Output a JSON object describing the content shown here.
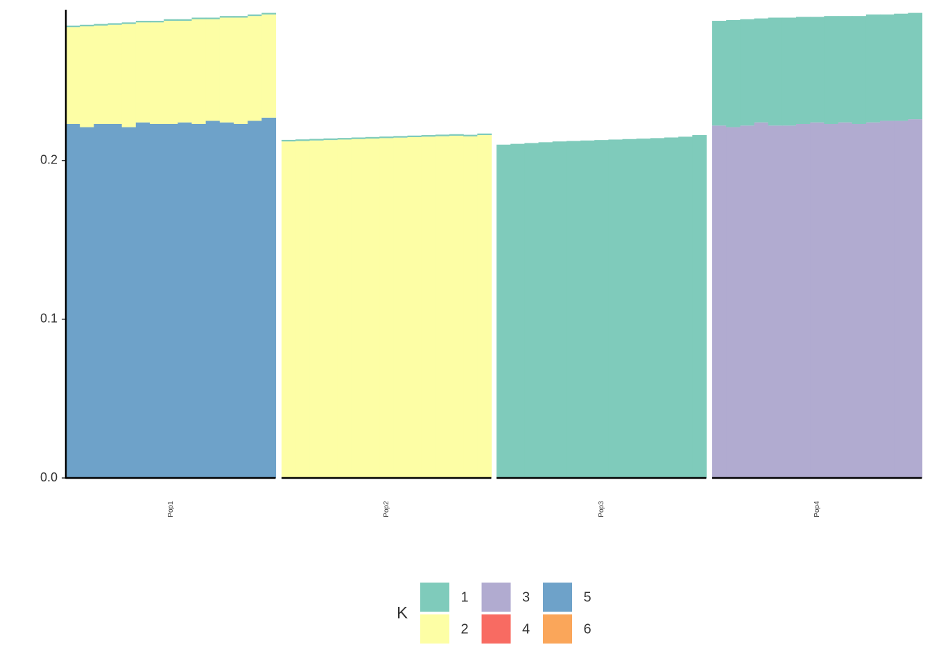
{
  "chart_data": {
    "type": "stacked-bar-facets",
    "ylim": [
      0,
      0.295
    ],
    "yticks": [
      {
        "value": 0,
        "label": "0.0"
      },
      0.1,
      0.2
    ],
    "legend_title": "K",
    "series": [
      {
        "name": "1",
        "color": "#7fcbbb"
      },
      {
        "name": "2",
        "color": "#fdfea5"
      },
      {
        "name": "3",
        "color": "#b1abd0"
      },
      {
        "name": "4",
        "color": "#f86b62"
      },
      {
        "name": "5",
        "color": "#6ea2c9"
      },
      {
        "name": "6",
        "color": "#faa65a"
      }
    ],
    "panels": [
      {
        "label": "Pop1",
        "stacks": [
          [
            0.001,
            0.061,
            0,
            0,
            0.223,
            0
          ],
          [
            0.001,
            0.0635,
            0,
            0,
            0.221,
            0
          ],
          [
            0.001,
            0.062,
            0,
            0,
            0.223,
            0
          ],
          [
            0.001,
            0.0625,
            0,
            0,
            0.223,
            0
          ],
          [
            0.001,
            0.065,
            0,
            0,
            0.221,
            0
          ],
          [
            0.001,
            0.063,
            0,
            0,
            0.224,
            0
          ],
          [
            0.001,
            0.064,
            0,
            0,
            0.223,
            0
          ],
          [
            0.001,
            0.065,
            0,
            0,
            0.223,
            0
          ],
          [
            0.001,
            0.064,
            0,
            0,
            0.224,
            0
          ],
          [
            0.001,
            0.066,
            0,
            0,
            0.223,
            0
          ],
          [
            0.001,
            0.064,
            0,
            0,
            0.225,
            0
          ],
          [
            0.001,
            0.066,
            0,
            0,
            0.224,
            0
          ],
          [
            0.001,
            0.067,
            0,
            0,
            0.223,
            0
          ],
          [
            0.001,
            0.066,
            0,
            0,
            0.225,
            0
          ],
          [
            0.001,
            0.065,
            0,
            0,
            0.227,
            0
          ]
        ]
      },
      {
        "label": "Pop2",
        "stacks": [
          [
            0.001,
            0.212,
            0,
            0,
            0,
            0
          ],
          [
            0.001,
            0.2123,
            0,
            0,
            0,
            0
          ],
          [
            0.001,
            0.2126,
            0,
            0,
            0,
            0
          ],
          [
            0.001,
            0.2129,
            0,
            0,
            0,
            0
          ],
          [
            0.001,
            0.2132,
            0,
            0,
            0,
            0
          ],
          [
            0.001,
            0.2135,
            0,
            0,
            0,
            0
          ],
          [
            0.001,
            0.2138,
            0,
            0,
            0,
            0
          ],
          [
            0.001,
            0.2141,
            0,
            0,
            0,
            0
          ],
          [
            0.001,
            0.2144,
            0,
            0,
            0,
            0
          ],
          [
            0.001,
            0.2147,
            0,
            0,
            0,
            0
          ],
          [
            0.001,
            0.215,
            0,
            0,
            0,
            0
          ],
          [
            0.001,
            0.2153,
            0,
            0,
            0,
            0
          ],
          [
            0.001,
            0.2156,
            0,
            0,
            0,
            0
          ],
          [
            0.001,
            0.2152,
            0,
            0,
            0,
            0
          ],
          [
            0.001,
            0.216,
            0,
            0,
            0,
            0
          ]
        ]
      },
      {
        "label": "Pop3",
        "stacks": [
          [
            0.21,
            0,
            0,
            0,
            0,
            0
          ],
          [
            0.2105,
            0,
            0,
            0,
            0,
            0
          ],
          [
            0.211,
            0,
            0,
            0,
            0,
            0
          ],
          [
            0.2115,
            0,
            0,
            0,
            0,
            0
          ],
          [
            0.212,
            0,
            0,
            0,
            0,
            0
          ],
          [
            0.2123,
            0,
            0,
            0,
            0,
            0
          ],
          [
            0.2126,
            0,
            0,
            0,
            0,
            0
          ],
          [
            0.2129,
            0,
            0,
            0,
            0,
            0
          ],
          [
            0.2132,
            0,
            0,
            0,
            0,
            0
          ],
          [
            0.2135,
            0,
            0,
            0,
            0,
            0
          ],
          [
            0.2138,
            0,
            0,
            0,
            0,
            0
          ],
          [
            0.2141,
            0,
            0,
            0,
            0,
            0
          ],
          [
            0.2145,
            0,
            0,
            0,
            0,
            0
          ],
          [
            0.215,
            0,
            0,
            0,
            0,
            0
          ],
          [
            0.216,
            0,
            0,
            0,
            0,
            0
          ]
        ]
      },
      {
        "label": "Pop4",
        "stacks": [
          [
            0.066,
            0,
            0.222,
            0,
            0,
            0
          ],
          [
            0.0675,
            0,
            0.221,
            0,
            0,
            0
          ],
          [
            0.067,
            0,
            0.222,
            0,
            0,
            0
          ],
          [
            0.0655,
            0,
            0.224,
            0,
            0,
            0
          ],
          [
            0.068,
            0,
            0.222,
            0,
            0,
            0
          ],
          [
            0.068,
            0,
            0.222,
            0,
            0,
            0
          ],
          [
            0.0675,
            0,
            0.223,
            0,
            0,
            0
          ],
          [
            0.0665,
            0,
            0.224,
            0,
            0,
            0
          ],
          [
            0.068,
            0,
            0.223,
            0,
            0,
            0
          ],
          [
            0.067,
            0,
            0.224,
            0,
            0,
            0
          ],
          [
            0.068,
            0,
            0.223,
            0,
            0,
            0
          ],
          [
            0.068,
            0,
            0.224,
            0,
            0,
            0
          ],
          [
            0.067,
            0,
            0.225,
            0,
            0,
            0
          ],
          [
            0.0675,
            0,
            0.225,
            0,
            0,
            0
          ],
          [
            0.067,
            0,
            0.226,
            0,
            0,
            0
          ]
        ]
      }
    ]
  }
}
